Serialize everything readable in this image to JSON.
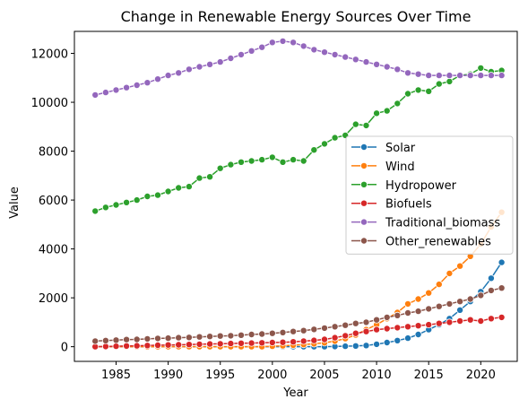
{
  "chart_data": {
    "type": "line",
    "title": "Change in Renewable Energy Sources Over Time",
    "xlabel": "Year",
    "ylabel": "Value",
    "xlim": [
      1981,
      2023.5
    ],
    "ylim": [
      -600,
      12900
    ],
    "xticks": [
      1985,
      1990,
      1995,
      2000,
      2005,
      2010,
      2015,
      2020
    ],
    "yticks": [
      0,
      2000,
      4000,
      6000,
      8000,
      10000,
      12000
    ],
    "grid": false,
    "legend_position": "center-right",
    "x": [
      1983,
      1984,
      1985,
      1986,
      1987,
      1988,
      1989,
      1990,
      1991,
      1992,
      1993,
      1994,
      1995,
      1996,
      1997,
      1998,
      1999,
      2000,
      2001,
      2002,
      2003,
      2004,
      2005,
      2006,
      2007,
      2008,
      2009,
      2010,
      2011,
      2012,
      2013,
      2014,
      2015,
      2016,
      2017,
      2018,
      2019,
      2020,
      2021,
      2022
    ],
    "series": [
      {
        "name": "Solar",
        "color": "#1f77b4",
        "values": [
          0,
          0,
          0,
          0,
          0,
          0,
          0,
          0,
          0,
          0,
          0,
          0,
          0,
          0,
          0,
          0,
          0,
          0,
          0,
          0,
          0,
          0,
          0,
          10,
          20,
          30,
          50,
          100,
          170,
          250,
          350,
          500,
          700,
          900,
          1150,
          1500,
          1850,
          2250,
          2800,
          3450
        ]
      },
      {
        "name": "Wind",
        "color": "#ff7f0e",
        "values": [
          0,
          0,
          0,
          0,
          0,
          0,
          0,
          0,
          0,
          0,
          0,
          0,
          0,
          0,
          0,
          0,
          0,
          20,
          40,
          60,
          90,
          120,
          160,
          230,
          330,
          480,
          700,
          900,
          1150,
          1400,
          1750,
          1950,
          2200,
          2550,
          3000,
          3300,
          3700,
          4200,
          4900,
          5500
        ]
      },
      {
        "name": "Hydropower",
        "color": "#2ca02c",
        "values": [
          5550,
          5700,
          5800,
          5900,
          6000,
          6150,
          6200,
          6350,
          6500,
          6550,
          6900,
          6950,
          7300,
          7450,
          7550,
          7600,
          7650,
          7750,
          7550,
          7650,
          7600,
          8050,
          8300,
          8550,
          8650,
          9100,
          9050,
          9550,
          9650,
          9950,
          10350,
          10500,
          10450,
          10750,
          10850,
          11100,
          11150,
          11400,
          11250,
          11300
        ]
      },
      {
        "name": "Biofuels",
        "color": "#d62728",
        "values": [
          0,
          10,
          20,
          30,
          40,
          50,
          60,
          70,
          80,
          90,
          100,
          110,
          120,
          130,
          140,
          150,
          160,
          170,
          180,
          200,
          230,
          260,
          300,
          370,
          450,
          550,
          620,
          700,
          740,
          780,
          820,
          860,
          900,
          950,
          1000,
          1050,
          1100,
          1050,
          1150,
          1200
        ]
      },
      {
        "name": "Traditional_biomass",
        "color": "#9467bd",
        "values": [
          10300,
          10400,
          10500,
          10600,
          10700,
          10800,
          10950,
          11100,
          11200,
          11350,
          11450,
          11550,
          11650,
          11800,
          11950,
          12100,
          12250,
          12450,
          12500,
          12450,
          12300,
          12150,
          12050,
          11950,
          11850,
          11750,
          11650,
          11550,
          11450,
          11350,
          11200,
          11150,
          11100,
          11100,
          11100,
          11100,
          11100,
          11100,
          11100,
          11100
        ]
      },
      {
        "name": "Other_renewables",
        "color": "#8c564b",
        "values": [
          230,
          250,
          270,
          290,
          300,
          320,
          340,
          350,
          370,
          380,
          400,
          420,
          440,
          450,
          470,
          500,
          520,
          550,
          580,
          620,
          660,
          710,
          760,
          820,
          880,
          950,
          1000,
          1100,
          1200,
          1280,
          1380,
          1450,
          1550,
          1650,
          1750,
          1850,
          1950,
          2100,
          2300,
          2400
        ]
      }
    ]
  }
}
